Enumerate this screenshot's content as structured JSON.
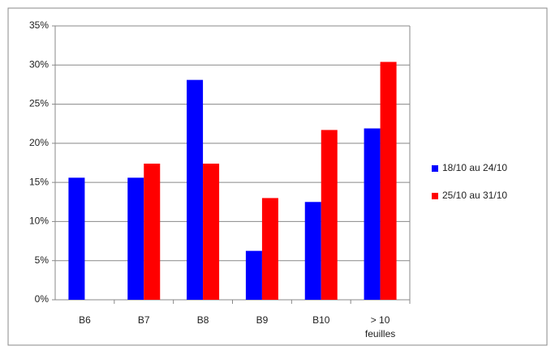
{
  "chart_data": {
    "type": "bar",
    "categories": [
      "B6",
      "B7",
      "B8",
      "B9",
      "B10",
      "> 10 feuilles"
    ],
    "series": [
      {
        "name": "18/10 au 24/10",
        "color": "#0000ff",
        "values": [
          15.6,
          15.6,
          28.1,
          6.25,
          12.5,
          21.9
        ]
      },
      {
        "name": "25/10 au 31/10",
        "color": "#ff0000",
        "values": [
          null,
          17.4,
          17.4,
          13.0,
          21.7,
          30.4
        ]
      }
    ],
    "ylim": [
      0,
      35
    ],
    "yticks": [
      {
        "value": 0,
        "label": "0%"
      },
      {
        "value": 5,
        "label": "5%"
      },
      {
        "value": 10,
        "label": "10%"
      },
      {
        "value": 15,
        "label": "15%"
      },
      {
        "value": 20,
        "label": "20%"
      },
      {
        "value": 25,
        "label": "25%"
      },
      {
        "value": 30,
        "label": "30%"
      },
      {
        "value": 35,
        "label": "35%"
      }
    ],
    "grid": true,
    "legend": "right"
  }
}
